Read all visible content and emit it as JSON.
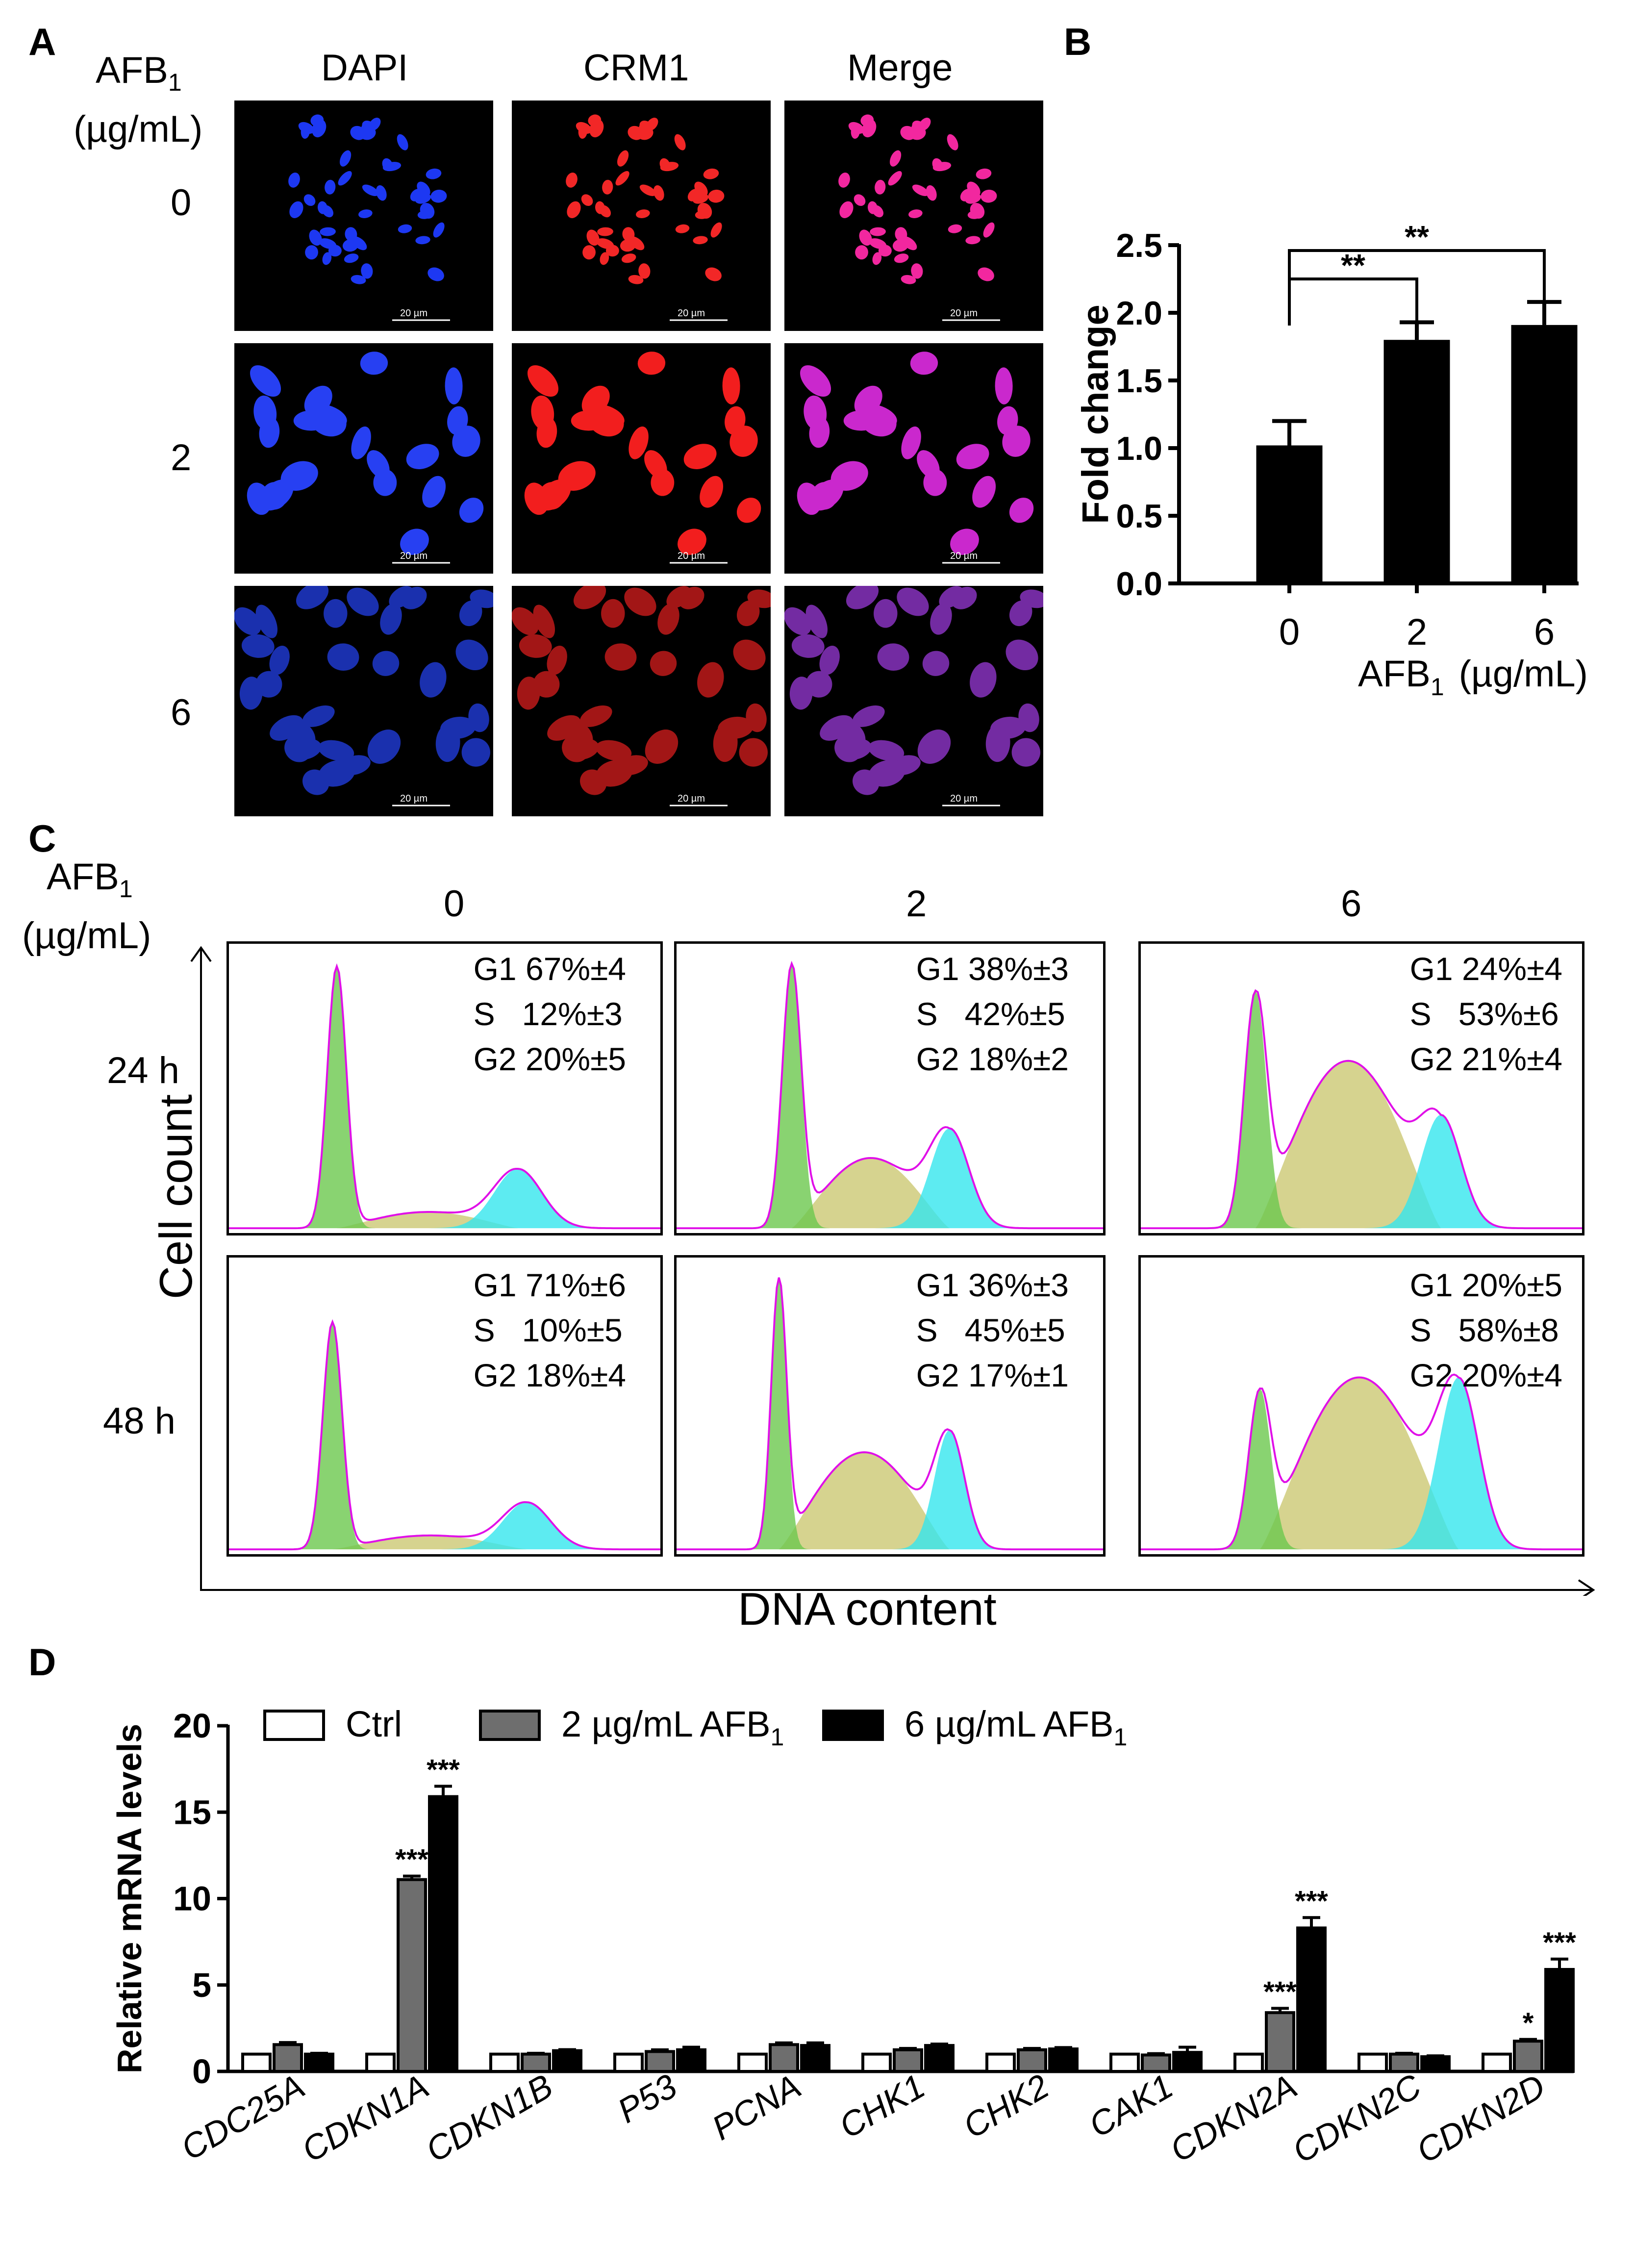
{
  "panelA": {
    "letter": "A",
    "dose_header": "AFB",
    "dose_header_sub": "1",
    "dose_unit": "(µg/mL)",
    "channels": [
      "DAPI",
      "CRM1",
      "Merge"
    ],
    "doses": [
      "0",
      "2",
      "6"
    ],
    "scale_label": "20 µm"
  },
  "panelB": {
    "letter": "B",
    "chart_data": {
      "type": "bar",
      "categories": [
        "0",
        "2",
        "6"
      ],
      "values": [
        1.02,
        1.8,
        1.91
      ],
      "errors": [
        0.18,
        0.13,
        0.17
      ],
      "ylabel": "Fold change",
      "xlabel_main": "AFB",
      "xlabel_sub": "1",
      "xlabel_unit": "(µg/mL)",
      "ylim": [
        0,
        2.5
      ],
      "yticks": [
        "0.0",
        "0.5",
        "1.0",
        "1.5",
        "2.0",
        "2.5"
      ],
      "significance": [
        {
          "from": "0",
          "to": "2",
          "label": "**"
        },
        {
          "from": "0",
          "to": "6",
          "label": "**"
        }
      ]
    }
  },
  "panelC": {
    "letter": "C",
    "dose_header": "AFB",
    "dose_header_sub": "1",
    "dose_unit": "(µg/mL)",
    "doses": [
      "0",
      "2",
      "6"
    ],
    "times": [
      "24 h",
      "48 h"
    ],
    "ylabel": "Cell count",
    "xlabel": "DNA content",
    "stats": [
      [
        "G1 67%±4",
        "S   12%±3",
        "G2 20%±5"
      ],
      [
        "G1 38%±3",
        "S   42%±5",
        "G2 18%±2"
      ],
      [
        "G1 24%±4",
        "S   53%±6",
        "G2 21%±4"
      ],
      [
        "G1 71%±6",
        "S   10%±5",
        "G2 18%±4"
      ],
      [
        "G1 36%±3",
        "S   45%±5",
        "G2 17%±1"
      ],
      [
        "G1 20%±5",
        "S   58%±8",
        "G2 20%±4"
      ]
    ]
  },
  "panelD": {
    "letter": "D",
    "chart_data": {
      "type": "bar",
      "categories": [
        "CDC25A",
        "CDKN1A",
        "CDKN1B",
        "P53",
        "PCNA",
        "CHK1",
        "CHK2",
        "CAK1",
        "CDKN2A",
        "CDKN2C",
        "CDKN2D"
      ],
      "series": [
        {
          "name": "Ctrl",
          "values": [
            1,
            1,
            1,
            1,
            1,
            1,
            1,
            1,
            1,
            1,
            1
          ],
          "errors": [
            0,
            0,
            0,
            0,
            0,
            0,
            0,
            0,
            0,
            0,
            0
          ],
          "sig": [
            "",
            "",
            "",
            "",
            "",
            "",
            "",
            "",
            "",
            "",
            ""
          ]
        },
        {
          "name": "2 µg/mL AFB",
          "values": [
            1.55,
            11.1,
            1.0,
            1.15,
            1.55,
            1.25,
            1.25,
            0.95,
            3.4,
            1.0,
            1.75
          ],
          "errors": [
            0.12,
            0.2,
            0.05,
            0.1,
            0.1,
            0.08,
            0.08,
            0.08,
            0.25,
            0.05,
            0.1
          ],
          "sig": [
            "",
            "***",
            "",
            "",
            "",
            "",
            "",
            "",
            "***",
            "",
            "*"
          ]
        },
        {
          "name": "6 µg/mL AFB",
          "values": [
            1.0,
            15.9,
            1.2,
            1.25,
            1.5,
            1.5,
            1.3,
            1.1,
            8.3,
            0.85,
            5.9
          ],
          "errors": [
            0.05,
            0.6,
            0.06,
            0.15,
            0.15,
            0.08,
            0.08,
            0.3,
            0.6,
            0.05,
            0.6
          ],
          "sig": [
            "",
            "***",
            "",
            "",
            "",
            "",
            "",
            "",
            "***",
            "",
            "***"
          ]
        }
      ],
      "legend_sub": "1",
      "ylabel": "Relative mRNA levels",
      "ylim": [
        0,
        20
      ],
      "yticks": [
        "0",
        "5",
        "10",
        "15",
        "20"
      ],
      "colors": [
        "#ffffff",
        "#6e6e6e",
        "#000000"
      ]
    }
  }
}
